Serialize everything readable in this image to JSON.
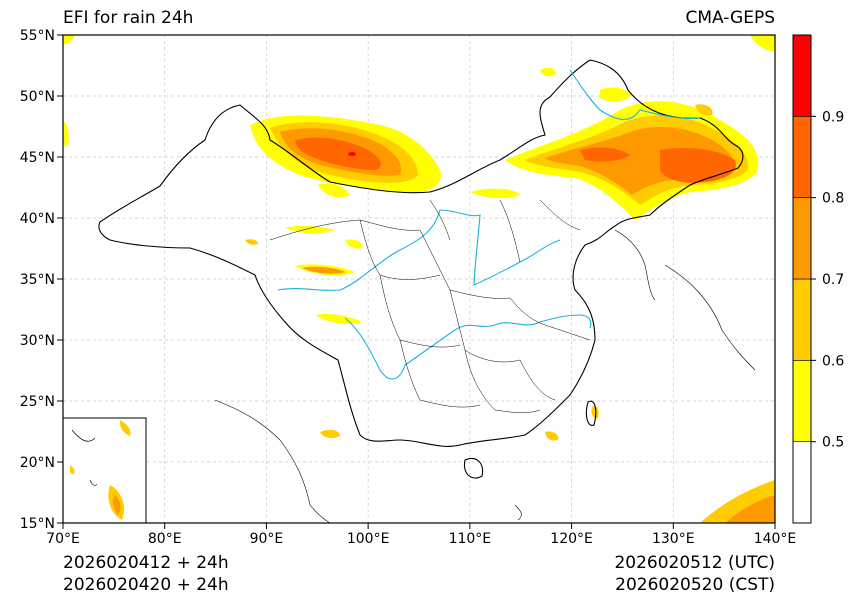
{
  "title_left": "EFI for rain 24h",
  "title_right": "CMA-GEPS",
  "footer": {
    "init_utc": "2026020412 + 24h",
    "init_cst": "2026020420 + 24h",
    "valid_utc": "2026020512 (UTC)",
    "valid_cst": "2026020520 (CST)"
  },
  "map": {
    "lon_range": [
      70,
      140
    ],
    "lat_range": [
      15,
      55
    ],
    "lon_ticks": [
      "70°E",
      "80°E",
      "90°E",
      "100°E",
      "110°E",
      "120°E",
      "130°E",
      "140°E"
    ],
    "lat_ticks": [
      "15°N",
      "20°N",
      "25°N",
      "30°N",
      "35°N",
      "40°N",
      "45°N",
      "50°N",
      "55°N"
    ],
    "gridlines": true
  },
  "colorbar": {
    "levels": [
      0.5,
      0.6,
      0.7,
      0.8,
      0.9
    ],
    "tick_labels": [
      "0.5",
      "0.6",
      "0.7",
      "0.8",
      "0.9"
    ],
    "colors": [
      "#ffffff",
      "#ffff00",
      "#ffcc00",
      "#ff9900",
      "#ff6600",
      "#ff0000"
    ]
  }
}
